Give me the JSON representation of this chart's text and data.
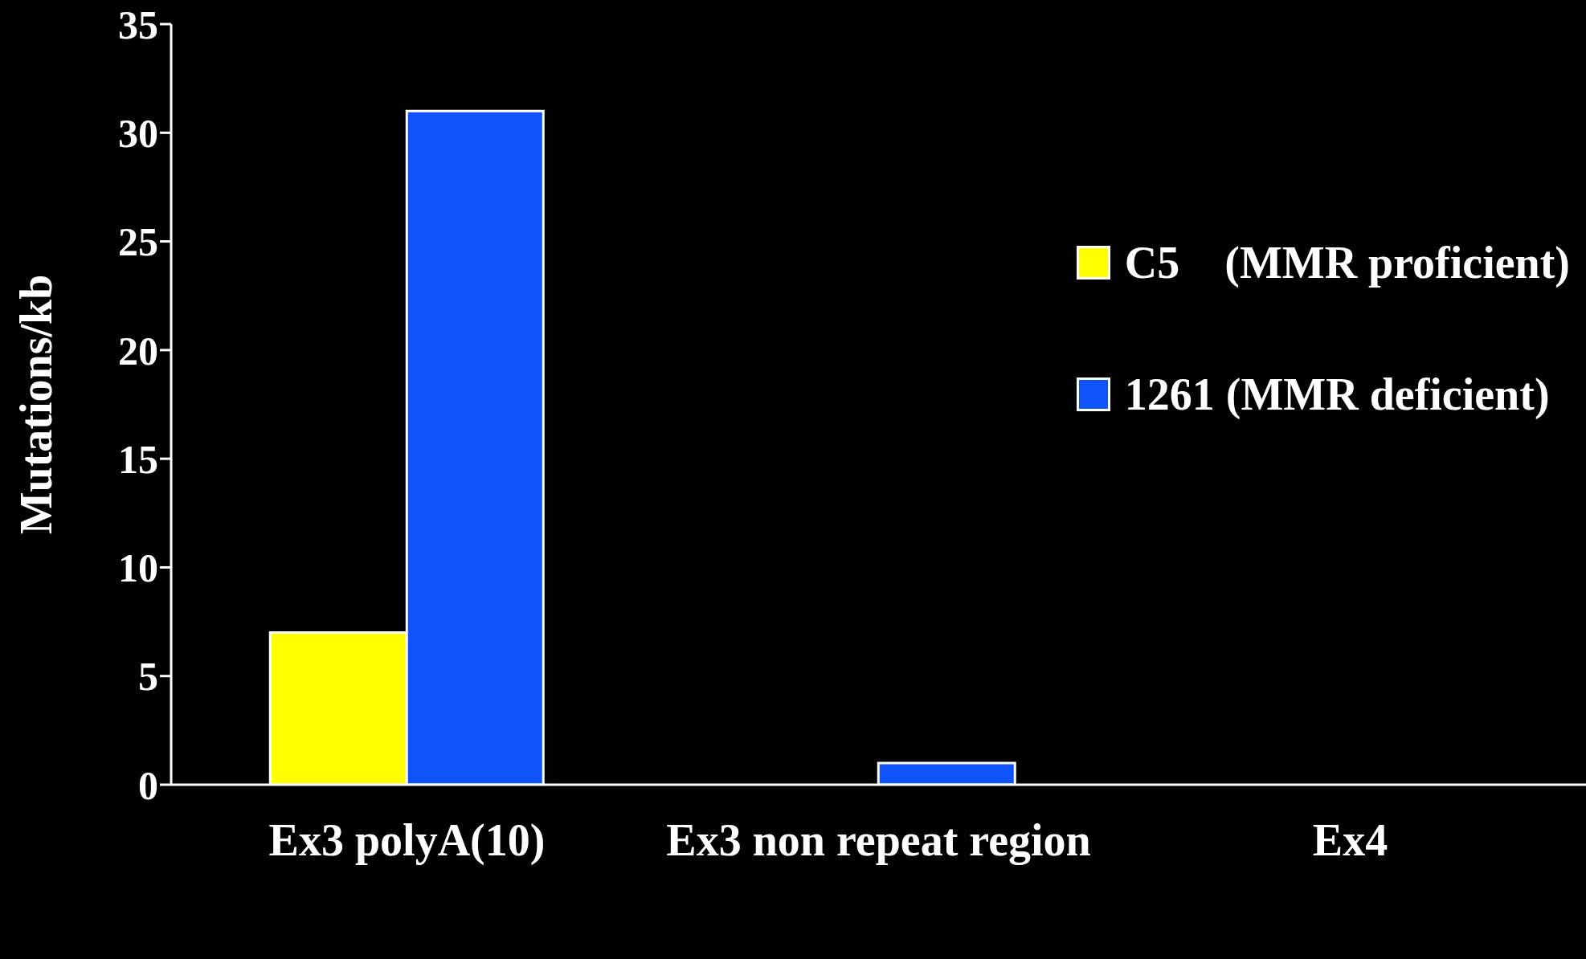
{
  "chart_data": {
    "type": "bar",
    "ylabel": "Mutations/kb",
    "categories": [
      "Ex3 polyA(10)",
      "Ex3 non repeat region",
      "Ex4"
    ],
    "series": [
      {
        "name": "C5    (MMR proficient)",
        "color": "#ffff00",
        "values": [
          7,
          0,
          0
        ]
      },
      {
        "name": "1261 (MMR deficient)",
        "color": "#1153fb",
        "values": [
          31,
          1,
          0
        ]
      }
    ],
    "ylim": [
      0,
      35
    ],
    "yticks": [
      0,
      5,
      10,
      15,
      20,
      25,
      30,
      35
    ],
    "grid": false,
    "legend": "top right"
  }
}
